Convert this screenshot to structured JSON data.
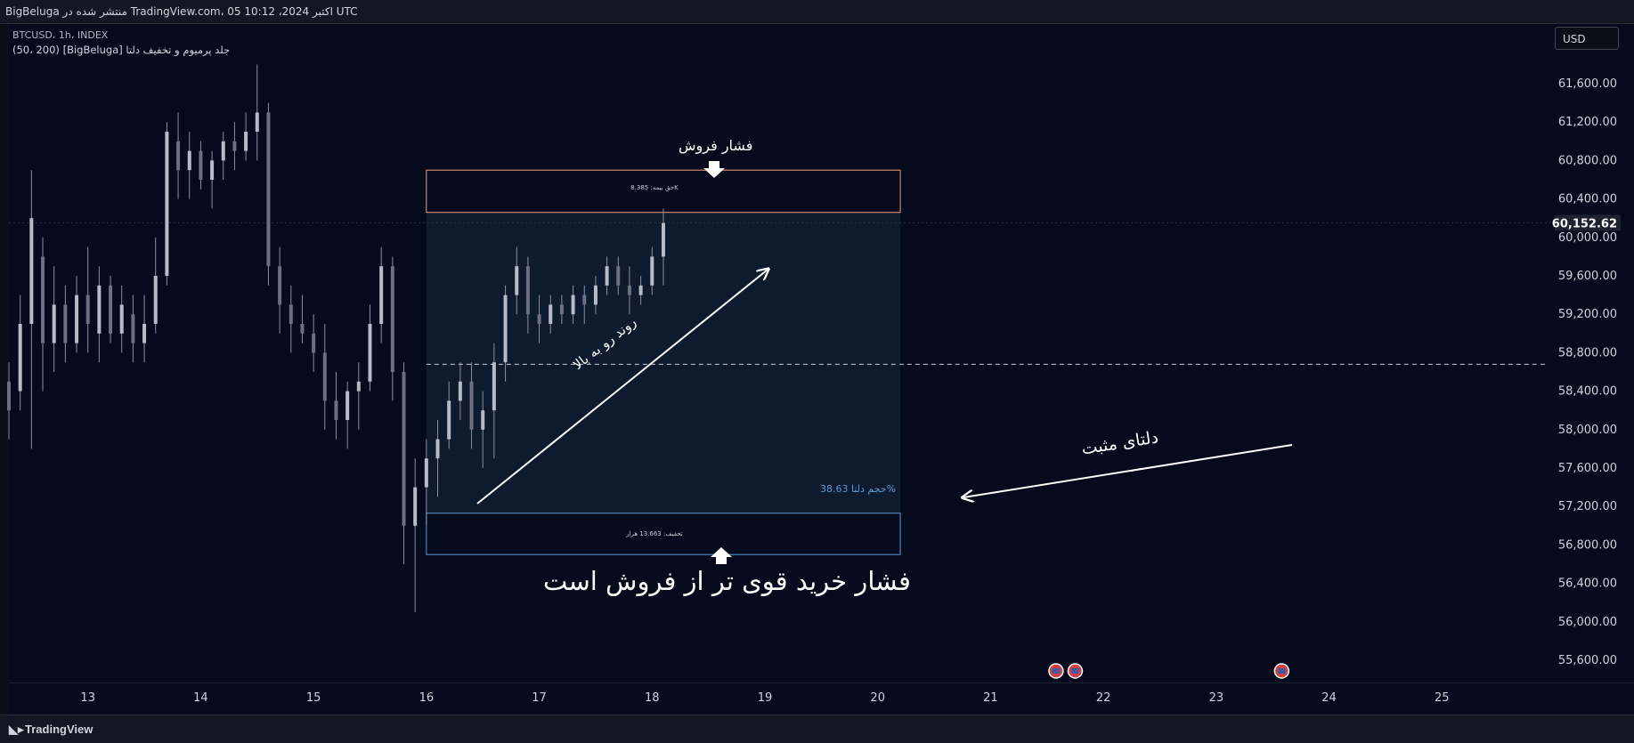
{
  "header": {
    "published_line": "BigBeluga منتشر شده در TradingView.com، 05 اکتبر 2024، 10:12 UTC"
  },
  "legend": {
    "symbol_line": "BTCUSD، 1h، INDEX",
    "indicator_line": "(50، 200) [BigBeluga] جلد پرمیوم و تخفیف دلتا"
  },
  "currency_button": "USD",
  "footer": {
    "brand": "TradingView"
  },
  "annotations": {
    "sell_pressure": "فشار فروش",
    "uptrend": "روند رو به بالا",
    "positive_delta": "دلتای مثبت",
    "buy_stronger": "فشار خرید قوی تر از فروش است"
  },
  "indicator": {
    "premium_label": "حق بیمه: 8.385K",
    "discount_label": "تخفیف: 13.663 هزار",
    "delta_volume_label": "حجم دلتا 38.63%",
    "premium_color": "#f7a072",
    "discount_color": "#5b9bd5",
    "zone_fill": "#0e1a2e",
    "premium_top": 60700,
    "premium_bottom": 60260,
    "discount_top": 57130,
    "discount_bottom": 56700,
    "mid_level": 58680,
    "x_start": 16.0,
    "x_end": 20.2
  },
  "chart_data": {
    "type": "candlestick",
    "symbol": "BTCUSD",
    "timeframe": "1h",
    "current_price": "60,152.62",
    "current_price_value": 60152.62,
    "ylim": [
      55300,
      61900
    ],
    "xlim": [
      12.3,
      26.0
    ],
    "y_ticks": [
      "61,600.00",
      "61,200.00",
      "60,800.00",
      "60,400.00",
      "60,000.00",
      "59,600.00",
      "59,200.00",
      "58,800.00",
      "58,400.00",
      "58,000.00",
      "57,600.00",
      "57,200.00",
      "56,800.00",
      "56,400.00",
      "56,000.00",
      "55,600.00"
    ],
    "y_tick_values": [
      61600,
      61200,
      60800,
      60400,
      60000,
      59600,
      59200,
      58800,
      58400,
      58000,
      57600,
      57200,
      56800,
      56400,
      56000,
      55600
    ],
    "x_ticks": [
      "13",
      "14",
      "15",
      "16",
      "17",
      "18",
      "19",
      "20",
      "21",
      "22",
      "23",
      "24",
      "25"
    ],
    "x_tick_values": [
      13,
      14,
      15,
      16,
      17,
      18,
      19,
      20,
      21,
      22,
      23,
      24,
      25
    ],
    "event_markers_x": [
      21.58,
      21.75,
      23.58
    ],
    "series": [
      {
        "x": 12.3,
        "o": 58500,
        "h": 58700,
        "l": 57900,
        "c": 58200
      },
      {
        "x": 12.4,
        "o": 58400,
        "h": 59400,
        "l": 58200,
        "c": 59100
      },
      {
        "x": 12.5,
        "o": 59100,
        "h": 60700,
        "l": 57800,
        "c": 60200
      },
      {
        "x": 12.6,
        "o": 59800,
        "h": 60000,
        "l": 58400,
        "c": 58900
      },
      {
        "x": 12.7,
        "o": 58900,
        "h": 59700,
        "l": 58600,
        "c": 59300
      },
      {
        "x": 12.8,
        "o": 59300,
        "h": 59500,
        "l": 58700,
        "c": 58900
      },
      {
        "x": 12.9,
        "o": 58900,
        "h": 59600,
        "l": 58800,
        "c": 59400
      },
      {
        "x": 13.0,
        "o": 59400,
        "h": 59900,
        "l": 58800,
        "c": 59100
      },
      {
        "x": 13.1,
        "o": 59000,
        "h": 59700,
        "l": 58700,
        "c": 59500
      },
      {
        "x": 13.2,
        "o": 59500,
        "h": 59600,
        "l": 58900,
        "c": 59000
      },
      {
        "x": 13.3,
        "o": 59000,
        "h": 59500,
        "l": 58800,
        "c": 59300
      },
      {
        "x": 13.4,
        "o": 59200,
        "h": 59400,
        "l": 58700,
        "c": 58900
      },
      {
        "x": 13.5,
        "o": 58900,
        "h": 59400,
        "l": 58700,
        "c": 59100
      },
      {
        "x": 13.6,
        "o": 59100,
        "h": 60000,
        "l": 59000,
        "c": 59600
      },
      {
        "x": 13.7,
        "o": 59600,
        "h": 61200,
        "l": 59500,
        "c": 61100
      },
      {
        "x": 13.8,
        "o": 61000,
        "h": 61300,
        "l": 60400,
        "c": 60700
      },
      {
        "x": 13.9,
        "o": 60700,
        "h": 61100,
        "l": 60400,
        "c": 60900
      },
      {
        "x": 14.0,
        "o": 60900,
        "h": 61000,
        "l": 60500,
        "c": 60600
      },
      {
        "x": 14.1,
        "o": 60600,
        "h": 60900,
        "l": 60300,
        "c": 60800
      },
      {
        "x": 14.2,
        "o": 60800,
        "h": 61100,
        "l": 60600,
        "c": 61000
      },
      {
        "x": 14.3,
        "o": 61000,
        "h": 61200,
        "l": 60700,
        "c": 60900
      },
      {
        "x": 14.4,
        "o": 60900,
        "h": 61300,
        "l": 60800,
        "c": 61100
      },
      {
        "x": 14.5,
        "o": 61100,
        "h": 61800,
        "l": 60800,
        "c": 61300
      },
      {
        "x": 14.6,
        "o": 61300,
        "h": 61400,
        "l": 59500,
        "c": 59700
      },
      {
        "x": 14.7,
        "o": 59700,
        "h": 59900,
        "l": 59000,
        "c": 59300
      },
      {
        "x": 14.8,
        "o": 59300,
        "h": 59500,
        "l": 58800,
        "c": 59100
      },
      {
        "x": 14.9,
        "o": 59100,
        "h": 59400,
        "l": 58900,
        "c": 59000
      },
      {
        "x": 15.0,
        "o": 59000,
        "h": 59200,
        "l": 58600,
        "c": 58800
      },
      {
        "x": 15.1,
        "o": 58800,
        "h": 59100,
        "l": 58000,
        "c": 58300
      },
      {
        "x": 15.2,
        "o": 58300,
        "h": 58600,
        "l": 57900,
        "c": 58100
      },
      {
        "x": 15.3,
        "o": 58100,
        "h": 58500,
        "l": 57800,
        "c": 58400
      },
      {
        "x": 15.4,
        "o": 58400,
        "h": 58700,
        "l": 58000,
        "c": 58500
      },
      {
        "x": 15.5,
        "o": 58500,
        "h": 59300,
        "l": 58400,
        "c": 59100
      },
      {
        "x": 15.6,
        "o": 59100,
        "h": 59900,
        "l": 58900,
        "c": 59700
      },
      {
        "x": 15.7,
        "o": 59700,
        "h": 59800,
        "l": 58300,
        "c": 58600
      },
      {
        "x": 15.8,
        "o": 58600,
        "h": 58700,
        "l": 56600,
        "c": 57000
      },
      {
        "x": 15.9,
        "o": 57000,
        "h": 57700,
        "l": 56100,
        "c": 57400
      },
      {
        "x": 16.0,
        "o": 57400,
        "h": 57900,
        "l": 57000,
        "c": 57700
      },
      {
        "x": 16.1,
        "o": 57700,
        "h": 58100,
        "l": 57300,
        "c": 57900
      },
      {
        "x": 16.2,
        "o": 57900,
        "h": 58500,
        "l": 57800,
        "c": 58300
      },
      {
        "x": 16.3,
        "o": 58300,
        "h": 58700,
        "l": 58100,
        "c": 58500
      },
      {
        "x": 16.4,
        "o": 58500,
        "h": 58700,
        "l": 57800,
        "c": 58000
      },
      {
        "x": 16.5,
        "o": 58000,
        "h": 58400,
        "l": 57600,
        "c": 58200
      },
      {
        "x": 16.6,
        "o": 58200,
        "h": 58900,
        "l": 57700,
        "c": 58700
      },
      {
        "x": 16.7,
        "o": 58700,
        "h": 59500,
        "l": 58500,
        "c": 59400
      },
      {
        "x": 16.8,
        "o": 59400,
        "h": 59900,
        "l": 59200,
        "c": 59700
      },
      {
        "x": 16.9,
        "o": 59700,
        "h": 59800,
        "l": 59000,
        "c": 59200
      },
      {
        "x": 17.0,
        "o": 59200,
        "h": 59400,
        "l": 58900,
        "c": 59100
      },
      {
        "x": 17.1,
        "o": 59100,
        "h": 59400,
        "l": 59000,
        "c": 59300
      },
      {
        "x": 17.2,
        "o": 59300,
        "h": 59400,
        "l": 59100,
        "c": 59200
      },
      {
        "x": 17.3,
        "o": 59200,
        "h": 59500,
        "l": 59100,
        "c": 59400
      },
      {
        "x": 17.4,
        "o": 59400,
        "h": 59500,
        "l": 59100,
        "c": 59300
      },
      {
        "x": 17.5,
        "o": 59300,
        "h": 59600,
        "l": 59200,
        "c": 59500
      },
      {
        "x": 17.6,
        "o": 59500,
        "h": 59800,
        "l": 59400,
        "c": 59700
      },
      {
        "x": 17.7,
        "o": 59700,
        "h": 59800,
        "l": 59400,
        "c": 59500
      },
      {
        "x": 17.8,
        "o": 59500,
        "h": 59700,
        "l": 59200,
        "c": 59400
      },
      {
        "x": 17.9,
        "o": 59400,
        "h": 59600,
        "l": 59300,
        "c": 59500
      },
      {
        "x": 18.0,
        "o": 59500,
        "h": 59900,
        "l": 59400,
        "c": 59800
      },
      {
        "x": 18.1,
        "o": 59800,
        "h": 60300,
        "l": 59500,
        "c": 60150
      }
    ]
  }
}
